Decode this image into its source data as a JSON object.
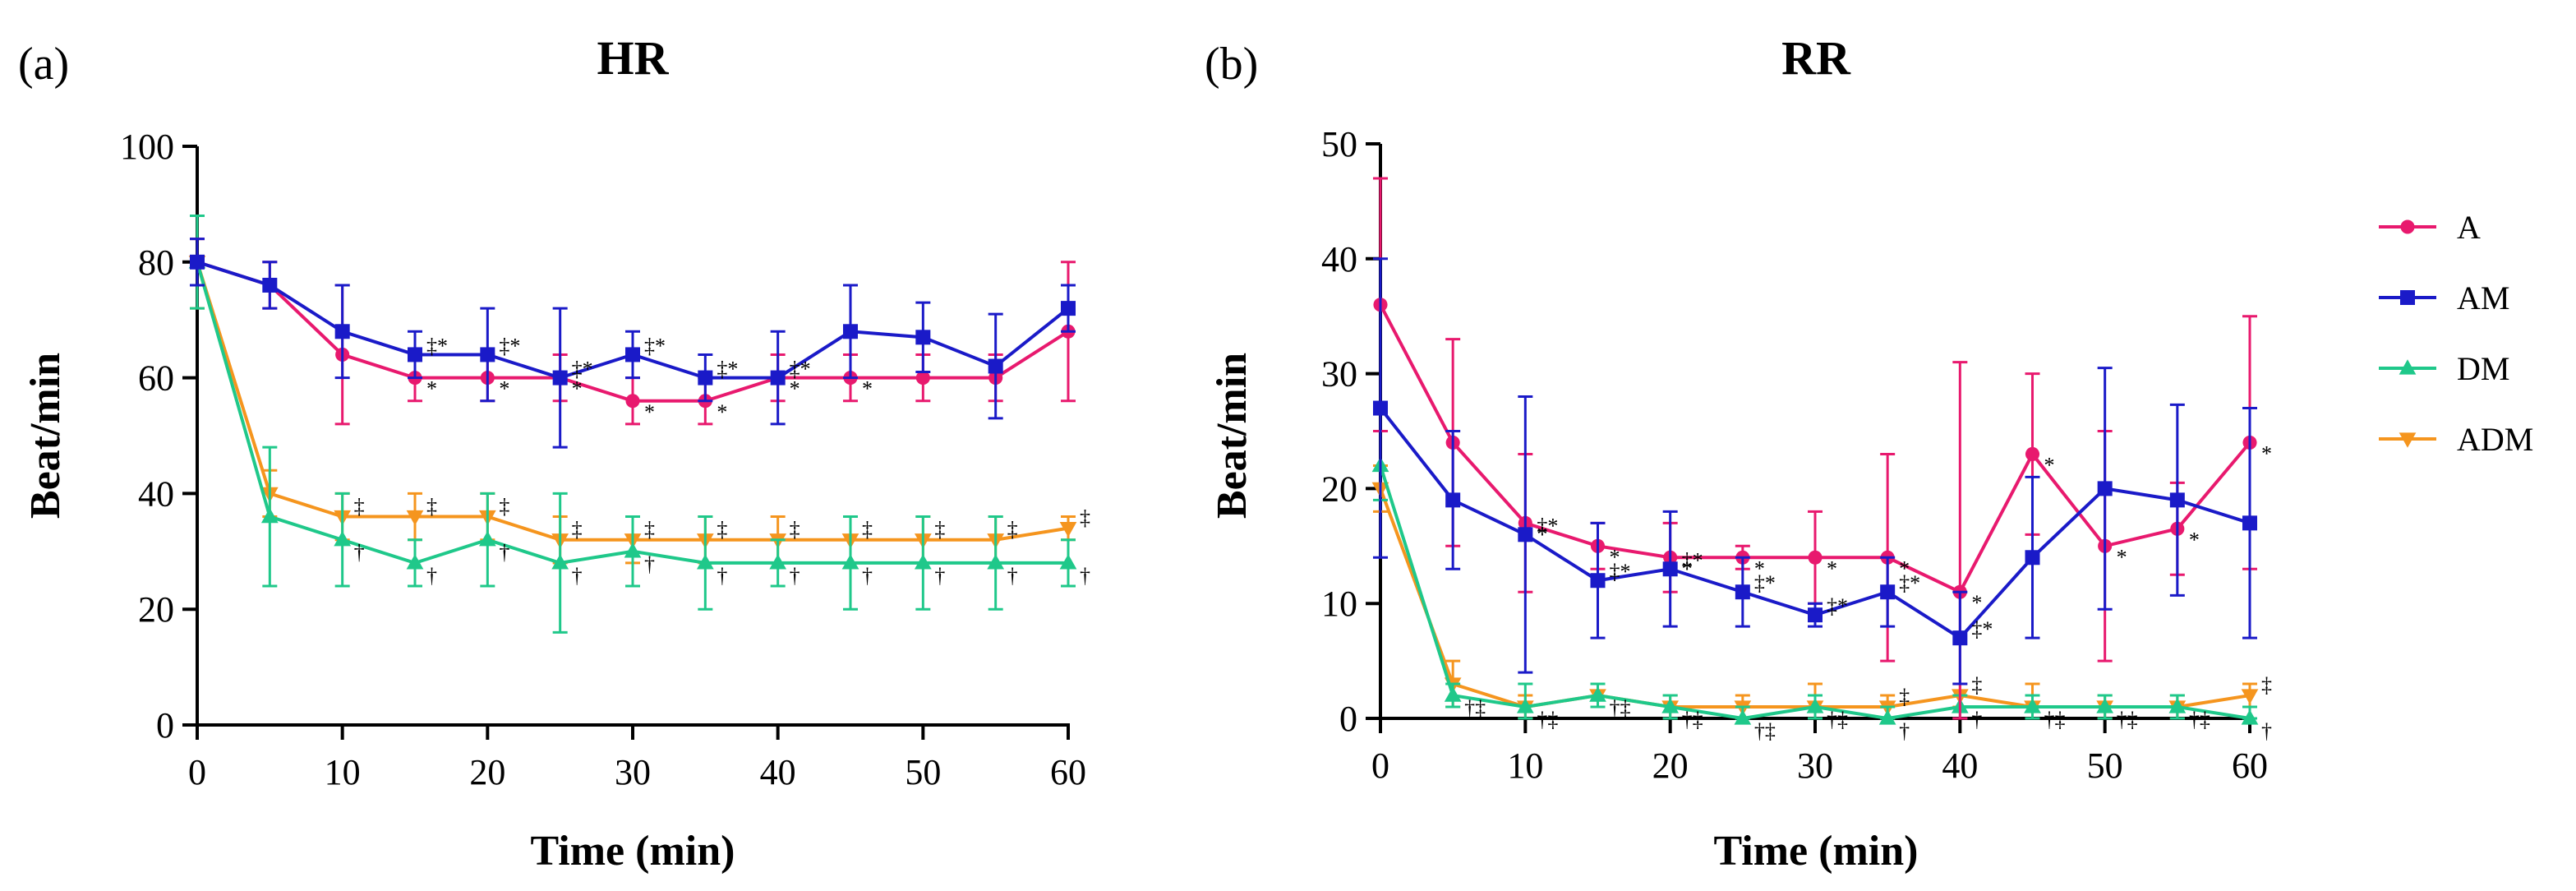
{
  "chart_data": [
    {
      "type": "line",
      "panel_label": "(a)",
      "title": "HR",
      "xlabel": "Time (min)",
      "ylabel": "Beat/min",
      "xlim": [
        0,
        60
      ],
      "ylim": [
        0,
        100
      ],
      "xticks": [
        0,
        10,
        20,
        30,
        40,
        50,
        60
      ],
      "yticks": [
        0,
        20,
        40,
        60,
        80,
        100
      ],
      "x": [
        0,
        5,
        10,
        15,
        20,
        25,
        30,
        35,
        40,
        45,
        50,
        55,
        60
      ],
      "series": [
        {
          "name": "A",
          "color": "#e8196e",
          "marker": "circle",
          "values": [
            80,
            76,
            64,
            60,
            60,
            60,
            56,
            56,
            60,
            60,
            60,
            60,
            68
          ],
          "errors": [
            4,
            4,
            12,
            4,
            4,
            4,
            4,
            4,
            4,
            4,
            4,
            4,
            12
          ],
          "sig": [
            "",
            "",
            "",
            "*",
            "*",
            "*",
            "*",
            "*",
            "*",
            "*",
            "",
            "",
            ""
          ]
        },
        {
          "name": "AM",
          "color": "#1a1ac8",
          "marker": "square",
          "values": [
            80,
            76,
            68,
            64,
            64,
            60,
            64,
            60,
            60,
            68,
            67,
            62,
            72
          ],
          "errors": [
            4,
            4,
            8,
            4,
            8,
            12,
            4,
            4,
            8,
            8,
            6,
            9,
            4
          ],
          "sig": [
            "",
            "",
            "",
            "‡*",
            "‡*",
            "‡*",
            "‡*",
            "‡*",
            "‡*",
            "",
            "",
            "",
            ""
          ]
        },
        {
          "name": "DM",
          "color": "#1fc88a",
          "marker": "triangle-up",
          "values": [
            80,
            36,
            32,
            28,
            32,
            28,
            30,
            28,
            28,
            28,
            28,
            28,
            28
          ],
          "errors": [
            8,
            12,
            8,
            4,
            8,
            12,
            6,
            8,
            4,
            8,
            8,
            8,
            4
          ],
          "sig": [
            "",
            "",
            "†",
            "†",
            "†",
            "†",
            "†",
            "†",
            "†",
            "†",
            "†",
            "†",
            "†"
          ]
        },
        {
          "name": "ADM",
          "color": "#f5951e",
          "marker": "triangle-down",
          "values": [
            80,
            40,
            36,
            36,
            36,
            32,
            32,
            32,
            32,
            32,
            32,
            32,
            34
          ],
          "errors": [
            8,
            4,
            4,
            4,
            4,
            4,
            4,
            4,
            4,
            4,
            4,
            4,
            2
          ],
          "sig": [
            "",
            "",
            "‡",
            "‡",
            "‡",
            "‡",
            "‡",
            "‡",
            "‡",
            "‡",
            "‡",
            "‡",
            "‡"
          ]
        }
      ]
    },
    {
      "type": "line",
      "panel_label": "(b)",
      "title": "RR",
      "xlabel": "Time (min)",
      "ylabel": "Beat/min",
      "xlim": [
        0,
        60
      ],
      "ylim": [
        0,
        50
      ],
      "xticks": [
        0,
        10,
        20,
        30,
        40,
        50,
        60
      ],
      "yticks": [
        0,
        10,
        20,
        30,
        40,
        50
      ],
      "x": [
        0,
        5,
        10,
        15,
        20,
        25,
        30,
        35,
        40,
        45,
        50,
        55,
        60
      ],
      "series": [
        {
          "name": "A",
          "color": "#e8196e",
          "marker": "circle",
          "values": [
            36,
            24,
            17,
            15,
            14,
            14,
            14,
            14,
            11,
            23,
            15,
            16.5,
            24
          ],
          "errors": [
            11,
            9,
            6,
            2,
            3,
            1,
            4,
            9,
            20,
            7,
            10,
            4,
            11
          ],
          "sig": [
            "",
            "",
            "*",
            "*",
            "*",
            "*",
            "*",
            "*",
            "*",
            "*",
            "*",
            "*",
            "*"
          ]
        },
        {
          "name": "AM",
          "color": "#1a1ac8",
          "marker": "square",
          "values": [
            27,
            19,
            16,
            12,
            13,
            11,
            9,
            11,
            7,
            14,
            20,
            19,
            17
          ],
          "errors": [
            13,
            6,
            12,
            5,
            5,
            3,
            1,
            3,
            4,
            7,
            10.5,
            8.3,
            10
          ],
          "sig": [
            "",
            "",
            "‡*",
            "‡*",
            "‡*",
            "‡*",
            "‡*",
            "‡*",
            "‡*",
            "",
            "",
            "",
            ""
          ]
        },
        {
          "name": "DM",
          "color": "#1fc88a",
          "marker": "triangle-up",
          "values": [
            22,
            2,
            1,
            2,
            1,
            0,
            1,
            0,
            1,
            1,
            1,
            1,
            0
          ],
          "errors": [
            3,
            1,
            2,
            1,
            1,
            1,
            1,
            1,
            1,
            1,
            1,
            1,
            1
          ],
          "sig": [
            "",
            "†‡",
            "†‡",
            "†‡",
            "†‡",
            "†‡",
            "†‡",
            "†",
            "†",
            "†‡",
            "†‡",
            "†‡",
            "†"
          ]
        },
        {
          "name": "ADM",
          "color": "#f5951e",
          "marker": "triangle-down",
          "values": [
            20,
            3,
            1,
            2,
            1,
            1,
            1,
            1,
            2,
            1,
            1,
            1,
            2
          ],
          "errors": [
            2,
            2,
            1,
            1,
            1,
            1,
            2,
            1,
            1,
            2,
            1,
            1,
            1
          ],
          "sig": [
            "",
            "",
            "",
            "",
            "",
            "",
            "",
            "‡",
            "‡",
            "",
            "",
            "",
            "‡"
          ]
        }
      ]
    }
  ],
  "legend": {
    "items": [
      {
        "name": "A",
        "color": "#e8196e",
        "marker": "circle"
      },
      {
        "name": "AM",
        "color": "#1a1ac8",
        "marker": "square"
      },
      {
        "name": "DM",
        "color": "#1fc88a",
        "marker": "triangle-up"
      },
      {
        "name": "ADM",
        "color": "#f5951e",
        "marker": "triangle-down"
      }
    ]
  }
}
